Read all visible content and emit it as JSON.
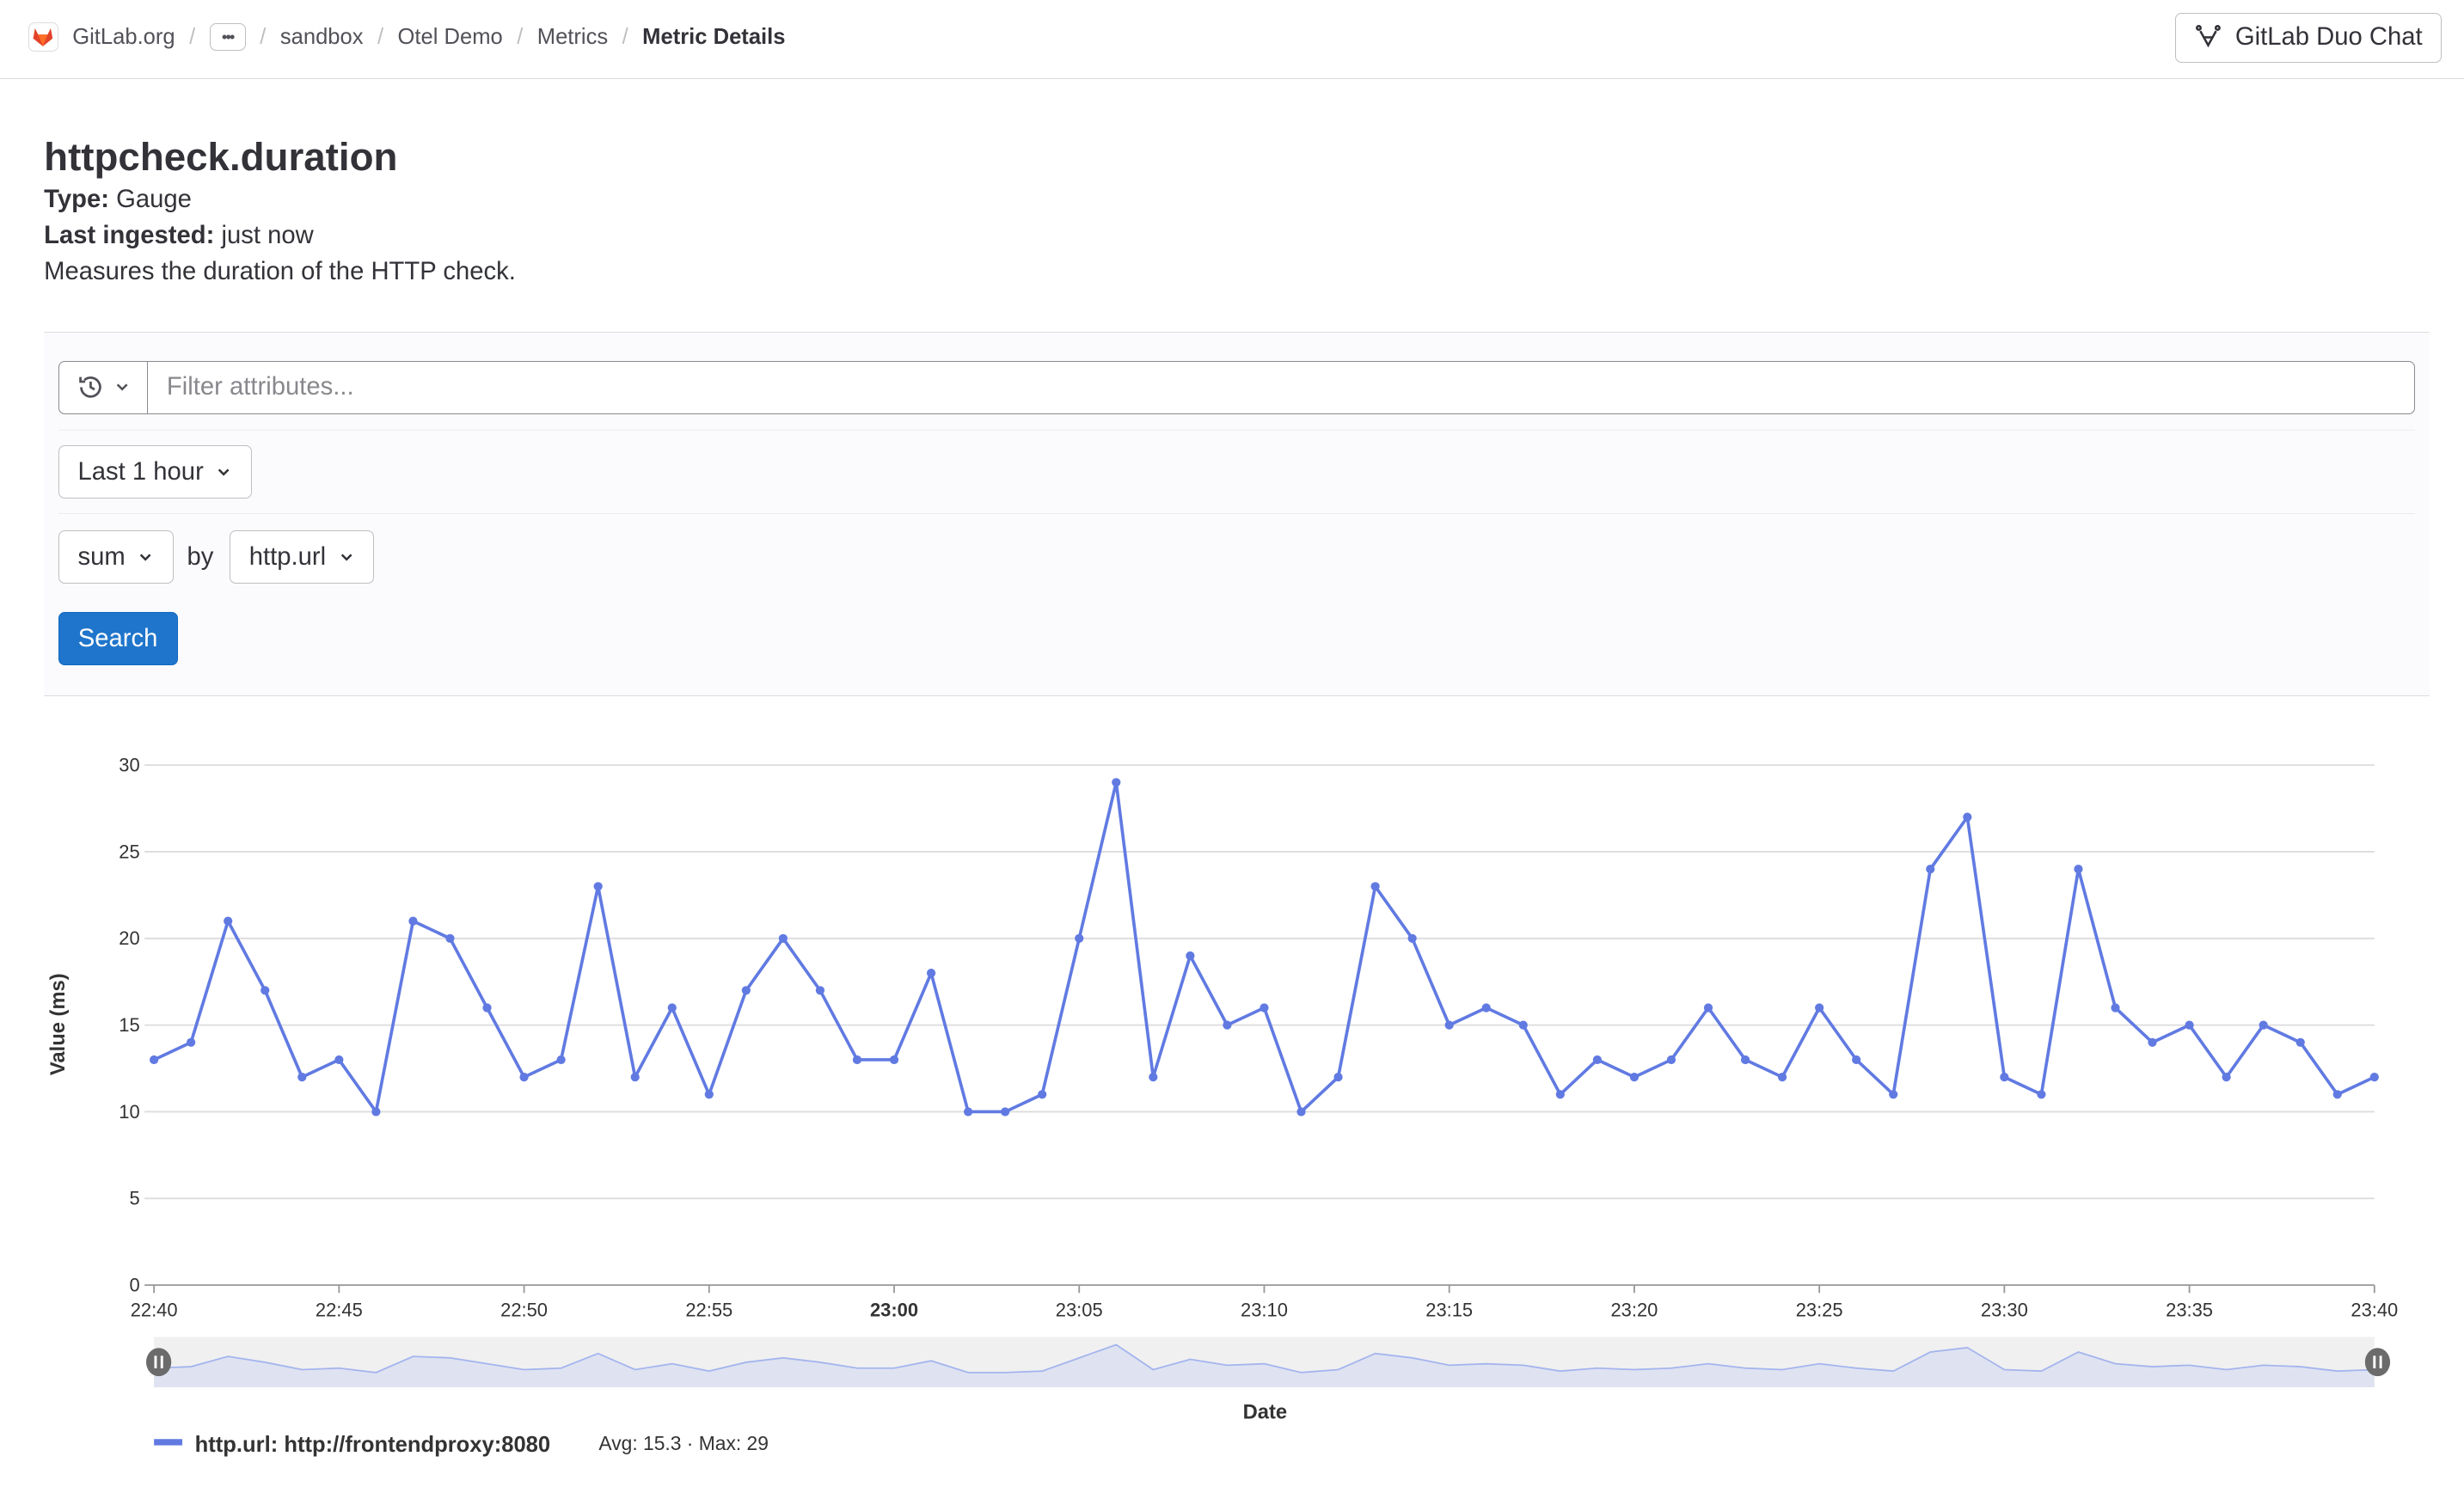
{
  "breadcrumb": {
    "items": [
      "GitLab.org",
      "sandbox",
      "Otel Demo",
      "Metrics"
    ],
    "current": "Metric Details"
  },
  "header": {
    "duo_chat_label": "GitLab Duo Chat"
  },
  "metric": {
    "name": "httpcheck.duration",
    "type_label": "Type:",
    "type": "Gauge",
    "ingested_label": "Last ingested:",
    "ingested": "just now",
    "description": "Measures the duration of the HTTP check."
  },
  "filters": {
    "placeholder": "Filter attributes...",
    "time_range": "Last 1 hour",
    "aggregation": "sum",
    "by_label": "by",
    "group_by": "http.url",
    "search_label": "Search"
  },
  "colors": {
    "series": "#617ae2",
    "primary": "#1f75cb"
  },
  "chart_data": {
    "type": "line",
    "xlabel": "Date",
    "ylabel": "Value (ms)",
    "ylim": [
      0,
      30
    ],
    "yticks": [
      0,
      5,
      10,
      15,
      20,
      25,
      30
    ],
    "xticks": [
      "22:40",
      "22:45",
      "22:50",
      "22:55",
      "23:00",
      "23:05",
      "23:10",
      "23:15",
      "23:20",
      "23:25",
      "23:30",
      "23:35",
      "23:40"
    ],
    "x_start": "22:40",
    "x_end": "23:40",
    "interval_minutes": 1,
    "grid": true,
    "series": [
      {
        "name": "http.url: http://frontendproxy:8080",
        "avg": "Avg: 15.3",
        "max": "Max: 29",
        "values": [
          13,
          14,
          21,
          17,
          12,
          13,
          10,
          21,
          20,
          16,
          12,
          13,
          23,
          12,
          16,
          11,
          17,
          20,
          17,
          13,
          13,
          18,
          10,
          10,
          11,
          20,
          29,
          12,
          19,
          15,
          16,
          10,
          12,
          23,
          20,
          15,
          16,
          15,
          11,
          13,
          12,
          13,
          16,
          13,
          12,
          16,
          13,
          11,
          24,
          27,
          12,
          11,
          24,
          16,
          14,
          15,
          12,
          15,
          14,
          11,
          12
        ]
      }
    ],
    "legend": "bottom-left"
  }
}
